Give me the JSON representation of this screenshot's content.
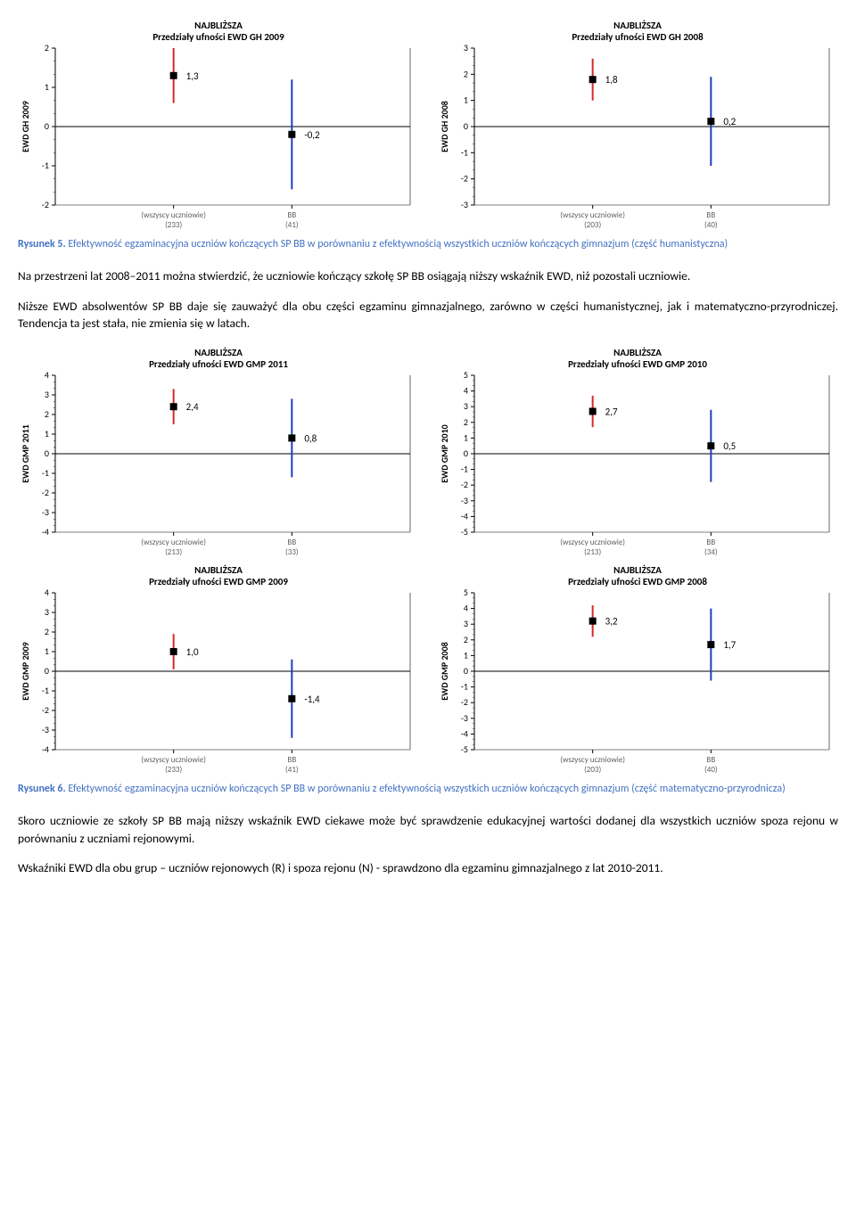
{
  "colors": {
    "red": "#d62728",
    "blue": "#1f3fbf",
    "axis": "#000000",
    "tick": "#000000",
    "marker": "#000000",
    "caption": "#4472c4",
    "text": "#000000",
    "xlabel": "#606060"
  },
  "charts": [
    {
      "title1": "NAJBLIŻSZA",
      "title2": "Przedziały ufności EWD GH 2009",
      "ylabel": "EWD GH 2009",
      "ymin": -2,
      "ymax": 2,
      "ytick": 1,
      "series": [
        {
          "xlabel1": "(wszyscy uczniowie)",
          "xlabel2": "(233)",
          "value": 1.3,
          "label": "1,3",
          "lo": 0.6,
          "hi": 2.0,
          "color": "red"
        },
        {
          "xlabel1": "BB",
          "xlabel2": "(41)",
          "value": -0.2,
          "label": "-0,2",
          "lo": -1.6,
          "hi": 1.2,
          "color": "blue"
        }
      ]
    },
    {
      "title1": "NAJBLIŻSZA",
      "title2": "Przedziały ufności EWD GH 2008",
      "ylabel": "EWD GH 2008",
      "ymin": -3,
      "ymax": 3,
      "ytick": 1,
      "series": [
        {
          "xlabel1": "(wszyscy uczniowie)",
          "xlabel2": "(203)",
          "value": 1.8,
          "label": "1,8",
          "lo": 1.0,
          "hi": 2.6,
          "color": "red"
        },
        {
          "xlabel1": "BB",
          "xlabel2": "(40)",
          "value": 0.2,
          "label": "0,2",
          "lo": -1.5,
          "hi": 1.9,
          "color": "blue"
        }
      ]
    },
    {
      "title1": "NAJBLIŻSZA",
      "title2": "Przedziały ufności EWD GMP 2011",
      "ylabel": "EWD GMP 2011",
      "ymin": -4,
      "ymax": 4,
      "ytick": 1,
      "series": [
        {
          "xlabel1": "(wszyscy uczniowie)",
          "xlabel2": "(213)",
          "value": 2.4,
          "label": "2,4",
          "lo": 1.5,
          "hi": 3.3,
          "color": "red"
        },
        {
          "xlabel1": "BB",
          "xlabel2": "(33)",
          "value": 0.8,
          "label": "0,8",
          "lo": -1.2,
          "hi": 2.8,
          "color": "blue"
        }
      ]
    },
    {
      "title1": "NAJBLIŻSZA",
      "title2": "Przedziały ufności EWD GMP 2010",
      "ylabel": "EWD GMP 2010",
      "ymin": -5,
      "ymax": 5,
      "ytick": 1,
      "series": [
        {
          "xlabel1": "(wszyscy uczniowie)",
          "xlabel2": "(213)",
          "value": 2.7,
          "label": "2,7",
          "lo": 1.7,
          "hi": 3.7,
          "color": "red"
        },
        {
          "xlabel1": "BB",
          "xlabel2": "(34)",
          "value": 0.5,
          "label": "0,5",
          "lo": -1.8,
          "hi": 2.8,
          "color": "blue"
        }
      ]
    },
    {
      "title1": "NAJBLIŻSZA",
      "title2": "Przedziały ufności EWD GMP 2009",
      "ylabel": "EWD GMP 2009",
      "ymin": -4,
      "ymax": 4,
      "ytick": 1,
      "series": [
        {
          "xlabel1": "(wszyscy uczniowie)",
          "xlabel2": "(233)",
          "value": 1.0,
          "label": "1,0",
          "lo": 0.1,
          "hi": 1.9,
          "color": "red"
        },
        {
          "xlabel1": "BB",
          "xlabel2": "(41)",
          "value": -1.4,
          "label": "-1,4",
          "lo": -3.4,
          "hi": 0.6,
          "color": "blue"
        }
      ]
    },
    {
      "title1": "NAJBLIŻSZA",
      "title2": "Przedziały ufności EWD GMP 2008",
      "ylabel": "EWD GMP 2008",
      "ymin": -5,
      "ymax": 5,
      "ytick": 1,
      "series": [
        {
          "xlabel1": "(wszyscy uczniowie)",
          "xlabel2": "(203)",
          "value": 3.2,
          "label": "3,2",
          "lo": 2.2,
          "hi": 4.2,
          "color": "red"
        },
        {
          "xlabel1": "BB",
          "xlabel2": "(40)",
          "value": 1.7,
          "label": "1,7",
          "lo": -0.6,
          "hi": 4.0,
          "color": "blue"
        }
      ]
    }
  ],
  "caption5_lead": "Rysunek 5.",
  "caption5_rest": " Efektywność egzaminacyjna uczniów kończących SP BB w porównaniu z efektywnością wszystkich uczniów kończących gimnazjum (część humanistyczna)",
  "caption6_lead": "Rysunek 6.",
  "caption6_rest": " Efektywność egzaminacyjna uczniów kończących SP BB w porównaniu z efektywnością wszystkich uczniów kończących gimnazjum (część matematyczno-przyrodnicza)",
  "para1": "Na przestrzeni lat 2008–2011 można stwierdzić, że uczniowie kończący szkołę SP BB osiągają niższy wskaźnik EWD, niż pozostali uczniowie.",
  "para2": "Niższe EWD absolwentów SP BB daje się zauważyć dla obu części egzaminu gimnazjalnego, zarówno w części humanistycznej, jak i matematyczno-przyrodniczej. Tendencja ta jest stała, nie zmienia się w latach.",
  "para3": "Skoro uczniowie ze szkoły SP BB mają niższy wskaźnik EWD ciekawe może być sprawdzenie edukacyjnej wartości dodanej dla wszystkich uczniów spoza rejonu w porównaniu z uczniami rejonowymi.",
  "para4": "Wskaźniki EWD dla obu grup – uczniów rejonowych (R) i spoza rejonu (N) - sprawdzono dla egzaminu gimnazjalnego z lat 2010-2011."
}
